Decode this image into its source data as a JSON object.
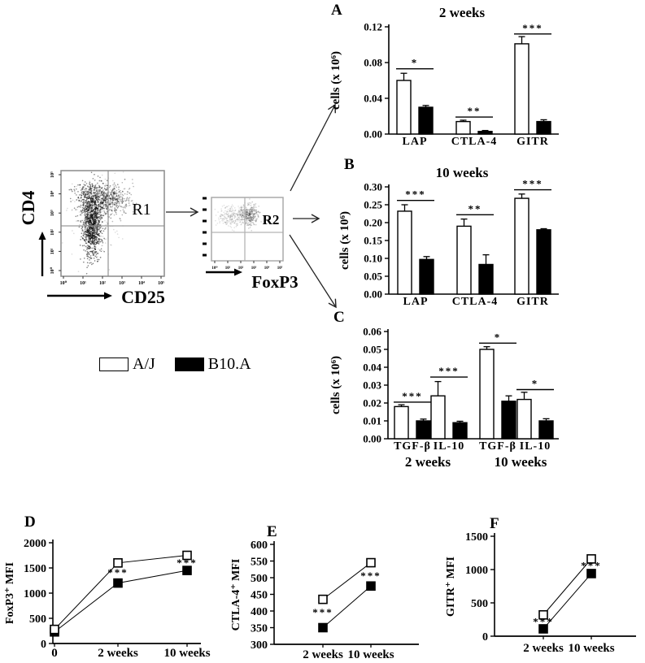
{
  "panel_letters": {
    "a": "A",
    "b": "B",
    "c": "C",
    "d": "D",
    "e": "E",
    "f": "F"
  },
  "legend": {
    "items": [
      {
        "label": "A/J",
        "fill": "#ffffff"
      },
      {
        "label": "B10.A",
        "fill": "#000000"
      }
    ]
  },
  "chart_data": [
    {
      "id": "flow1",
      "type": "flow-scatter",
      "xlabel": "CD25",
      "ylabel": "CD4",
      "gate_label": "R1",
      "x_ticks": [
        "10⁰",
        "10¹",
        "10²",
        "10³",
        "10⁴",
        "10⁵"
      ],
      "y_ticks": [
        "10⁰",
        "10¹",
        "10²",
        "10³",
        "10⁴",
        "10⁵"
      ],
      "point_color": "#000000",
      "clusters": [
        {
          "cx": 0.33,
          "cy": 0.27,
          "sx": 0.11,
          "sy": 0.08,
          "n": 500,
          "o": 0.45
        },
        {
          "cx": 0.3,
          "cy": 0.52,
          "sx": 0.045,
          "sy": 0.16,
          "n": 900,
          "o": 0.5
        },
        {
          "cx": 0.52,
          "cy": 0.28,
          "sx": 0.08,
          "sy": 0.07,
          "n": 250,
          "o": 0.3
        },
        {
          "cx": 0.36,
          "cy": 0.42,
          "sx": 0.14,
          "sy": 0.18,
          "n": 200,
          "o": 0.15
        }
      ]
    },
    {
      "id": "flow2",
      "type": "flow-scatter",
      "xlabel": "FoxP3",
      "gate_label": "R2",
      "x_ticks": [
        "10⁰",
        "10¹",
        "10²",
        "10³",
        "10⁴",
        "10⁵"
      ],
      "point_color": "#444444",
      "clusters": [
        {
          "cx": 0.28,
          "cy": 0.3,
          "sx": 0.1,
          "sy": 0.08,
          "n": 240,
          "o": 0.16
        },
        {
          "cx": 0.52,
          "cy": 0.28,
          "sx": 0.07,
          "sy": 0.08,
          "n": 330,
          "o": 0.27
        }
      ]
    },
    {
      "id": "A",
      "type": "bar",
      "title": "2 weeks",
      "ylabel": "cells (x 10⁶)",
      "ylim": [
        0,
        0.12
      ],
      "ytick_values": [
        0,
        0.04,
        0.08,
        0.12
      ],
      "ytick_labels": [
        "0.00",
        "0.04",
        "0.08",
        "0.12"
      ],
      "categories": [
        "LAP",
        "CTLA-4",
        "GITR"
      ],
      "series": [
        {
          "name": "A/J",
          "fill": "#ffffff",
          "values": [
            0.06,
            0.014,
            0.101
          ],
          "errors": [
            0.008,
            0.0015,
            0.008
          ]
        },
        {
          "name": "B10.A",
          "fill": "#000000",
          "values": [
            0.03,
            0.003,
            0.014
          ],
          "errors": [
            0.002,
            0.001,
            0.002
          ]
        }
      ],
      "significance": [
        {
          "group": 0,
          "label": "*",
          "y": 0.073
        },
        {
          "group": 1,
          "label": "**",
          "y": 0.019
        },
        {
          "group": 2,
          "label": "***",
          "y": 0.112
        }
      ]
    },
    {
      "id": "B",
      "type": "bar",
      "title": "10 weeks",
      "ylabel": "cells (x 10⁶)",
      "ylim": [
        0,
        0.3
      ],
      "ytick_values": [
        0,
        0.05,
        0.1,
        0.15,
        0.2,
        0.25,
        0.3
      ],
      "ytick_labels": [
        "0.00",
        "0.05",
        "0.10",
        "0.15",
        "0.20",
        "0.25",
        "0.30"
      ],
      "categories": [
        "LAP",
        "CTLA-4",
        "GITR"
      ],
      "series": [
        {
          "name": "A/J",
          "fill": "#ffffff",
          "values": [
            0.232,
            0.19,
            0.268
          ],
          "errors": [
            0.018,
            0.02,
            0.012
          ]
        },
        {
          "name": "B10.A",
          "fill": "#000000",
          "values": [
            0.097,
            0.083,
            0.18
          ],
          "errors": [
            0.008,
            0.027,
            0.003
          ]
        }
      ],
      "significance": [
        {
          "group": 0,
          "label": "***",
          "y": 0.262
        },
        {
          "group": 1,
          "label": "**",
          "y": 0.222
        },
        {
          "group": 2,
          "label": "***",
          "y": 0.292
        }
      ]
    },
    {
      "id": "C",
      "type": "bar",
      "title": "",
      "ylabel": "cells (x 10⁶)",
      "ylim": [
        0,
        0.06
      ],
      "ytick_values": [
        0,
        0.01,
        0.02,
        0.03,
        0.04,
        0.05,
        0.06
      ],
      "ytick_labels": [
        "0.00",
        "0.01",
        "0.02",
        "0.03",
        "0.04",
        "0.05",
        "0.06"
      ],
      "categories": [
        "TGF-β",
        "IL-10",
        "TGF-β",
        "IL-10"
      ],
      "group_labels": [
        "2 weeks",
        "10 weeks"
      ],
      "series": [
        {
          "name": "A/J",
          "fill": "#ffffff",
          "values": [
            0.018,
            0.024,
            0.05,
            0.022
          ],
          "errors": [
            0.001,
            0.008,
            0.0015,
            0.004
          ]
        },
        {
          "name": "B10.A",
          "fill": "#000000",
          "values": [
            0.01,
            0.009,
            0.021,
            0.01
          ],
          "errors": [
            0.001,
            0.0008,
            0.003,
            0.0012
          ]
        }
      ],
      "significance": [
        {
          "group": 0,
          "label": "***",
          "y": 0.0205
        },
        {
          "group": 1,
          "label": "***",
          "y": 0.0345
        },
        {
          "group": 2,
          "label": "*",
          "y": 0.0535
        },
        {
          "group": 3,
          "label": "*",
          "y": 0.0275
        }
      ]
    },
    {
      "id": "D",
      "type": "line",
      "ylabel": "FoxP3⁺ MFI",
      "ylim": [
        0,
        2000
      ],
      "ytick_values": [
        0,
        500,
        1000,
        1500,
        2000
      ],
      "ytick_labels": [
        "0",
        "500",
        "1000",
        "1500",
        "2000"
      ],
      "x_categories": [
        "0",
        "2 weeks",
        "10 weeks"
      ],
      "series": [
        {
          "name": "A/J",
          "marker": "open-square",
          "values": [
            280,
            1600,
            1750
          ]
        },
        {
          "name": "B10.A",
          "marker": "filled-square",
          "values": [
            230,
            1200,
            1450
          ]
        }
      ],
      "significance": [
        {
          "x": 1,
          "label": "***",
          "y": 1400
        },
        {
          "x": 2,
          "label": "***",
          "y": 1600
        }
      ]
    },
    {
      "id": "E",
      "type": "line",
      "ylabel": "CTLA-4⁺ MFI",
      "ylim": [
        300,
        600
      ],
      "ytick_values": [
        300,
        350,
        400,
        450,
        500,
        550,
        600
      ],
      "ytick_labels": [
        "300",
        "350",
        "400",
        "450",
        "500",
        "550",
        "600"
      ],
      "x_categories": [
        "2 weeks",
        "10 weeks"
      ],
      "series": [
        {
          "name": "A/J",
          "marker": "open-square",
          "values": [
            435,
            545
          ]
        },
        {
          "name": "B10.A",
          "marker": "filled-square",
          "values": [
            350,
            475
          ]
        }
      ],
      "significance": [
        {
          "x": 0,
          "label": "***",
          "y": 395
        },
        {
          "x": 1,
          "label": "***",
          "y": 505
        }
      ]
    },
    {
      "id": "F",
      "type": "line",
      "ylabel": "GITR⁺ MFI",
      "ylim": [
        0,
        1500
      ],
      "ytick_values": [
        0,
        500,
        1000,
        1500
      ],
      "ytick_labels": [
        "0",
        "500",
        "1000",
        "1500"
      ],
      "x_categories": [
        "2 weeks",
        "10 weeks"
      ],
      "series": [
        {
          "name": "A/J",
          "marker": "open-square",
          "values": [
            320,
            1160
          ]
        },
        {
          "name": "B10.A",
          "marker": "filled-square",
          "values": [
            110,
            940
          ]
        }
      ],
      "significance": [
        {
          "x": 0,
          "label": "***",
          "y": 215
        },
        {
          "x": 1,
          "label": "***",
          "y": 1055
        }
      ]
    }
  ]
}
